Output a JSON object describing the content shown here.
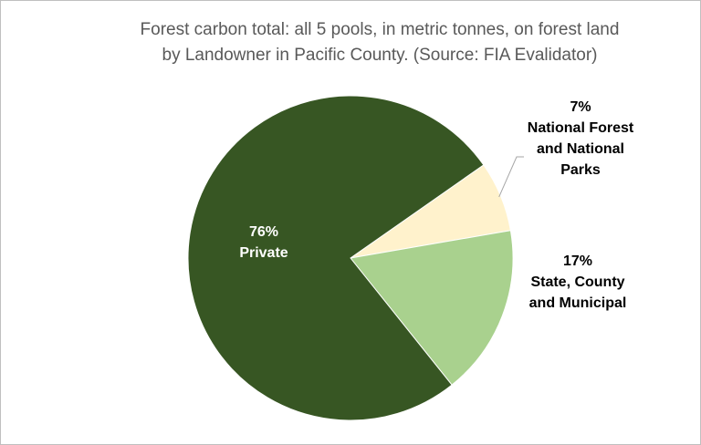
{
  "title": {
    "line1": "Forest carbon total: all 5 pools, in metric tonnes, on forest land",
    "line2": "by Landowner in Pacific County.  (Source: FIA Evalidator)"
  },
  "chart_data": {
    "type": "pie",
    "title": "Forest carbon total: all 5 pools, in metric tonnes, on forest land by Landowner in Pacific County.  (Source: FIA Evalidator)",
    "legend": "none (data labels on chart)",
    "slices": [
      {
        "label": "National Forest and National Parks",
        "value": 7,
        "display": "7%",
        "label_lines": [
          "National Forest",
          "and National",
          "Parks"
        ],
        "color": "#fff2cc",
        "label_color": "#000000"
      },
      {
        "label": "State, County and Municipal",
        "value": 17,
        "display": "17%",
        "label_lines": [
          "State, County",
          "and Municipal"
        ],
        "color": "#a9d18e",
        "label_color": "#000000"
      },
      {
        "label": "Private",
        "value": 76,
        "display": "76%",
        "label_lines": [
          "Private"
        ],
        "color": "#375623",
        "label_color": "#ffffff"
      }
    ]
  }
}
